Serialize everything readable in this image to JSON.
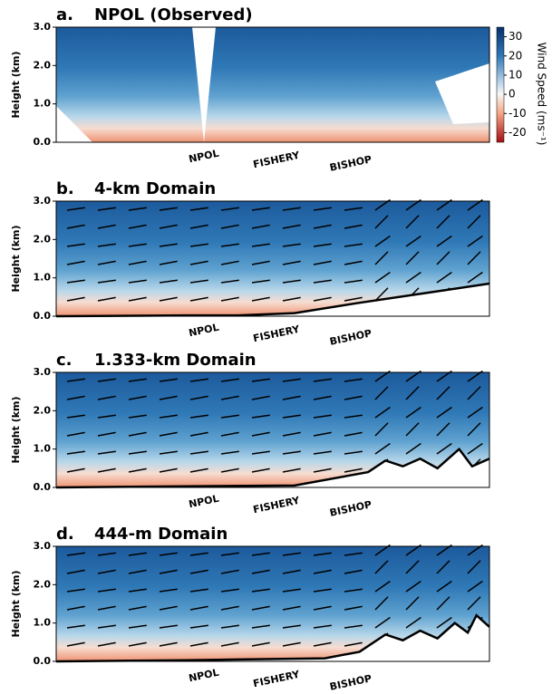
{
  "chart_data": [
    {
      "type": "contour",
      "letter": "a.",
      "title": "NPOL (Observed)",
      "y_label": "Height (km)",
      "ylim": [
        0,
        3
      ],
      "yticks": [
        {
          "value": 0,
          "label": "0.0"
        },
        {
          "value": 1,
          "label": "1.0"
        },
        {
          "value": 2,
          "label": "2.0"
        },
        {
          "value": 3,
          "label": "3.0"
        }
      ],
      "x_labels": [
        "NPOL",
        "FISHERY",
        "BISHOP"
      ],
      "colorbar": {
        "label": "Wind Speed (ms⁻¹)",
        "lim": [
          -25,
          35
        ],
        "ticks": [
          30,
          20,
          10,
          0,
          -10,
          -20
        ]
      }
    },
    {
      "type": "contour",
      "letter": "b.",
      "title": "4-km Domain",
      "y_label": "Height (km)",
      "ylim": [
        0,
        3
      ],
      "yticks": [
        {
          "value": 0,
          "label": "0.0"
        },
        {
          "value": 1,
          "label": "1.0"
        },
        {
          "value": 2,
          "label": "2.0"
        },
        {
          "value": 3,
          "label": "3.0"
        }
      ],
      "x_labels": [
        "NPOL",
        "FISHERY",
        "BISHOP"
      ]
    },
    {
      "type": "contour",
      "letter": "c.",
      "title": "1.333-km Domain",
      "y_label": "Height (km)",
      "ylim": [
        0,
        3
      ],
      "yticks": [
        {
          "value": 0,
          "label": "0.0"
        },
        {
          "value": 1,
          "label": "1.0"
        },
        {
          "value": 2,
          "label": "2.0"
        },
        {
          "value": 3,
          "label": "3.0"
        }
      ],
      "x_labels": [
        "NPOL",
        "FISHERY",
        "BISHOP"
      ]
    },
    {
      "type": "contour",
      "letter": "d.",
      "title": "444-m Domain",
      "y_label": "Height (km)",
      "ylim": [
        0,
        3
      ],
      "yticks": [
        {
          "value": 0,
          "label": "0.0"
        },
        {
          "value": 1,
          "label": "1.0"
        },
        {
          "value": 2,
          "label": "2.0"
        },
        {
          "value": 3,
          "label": "3.0"
        }
      ],
      "x_labels": [
        "NPOL",
        "FISHERY",
        "BISHOP"
      ]
    }
  ]
}
